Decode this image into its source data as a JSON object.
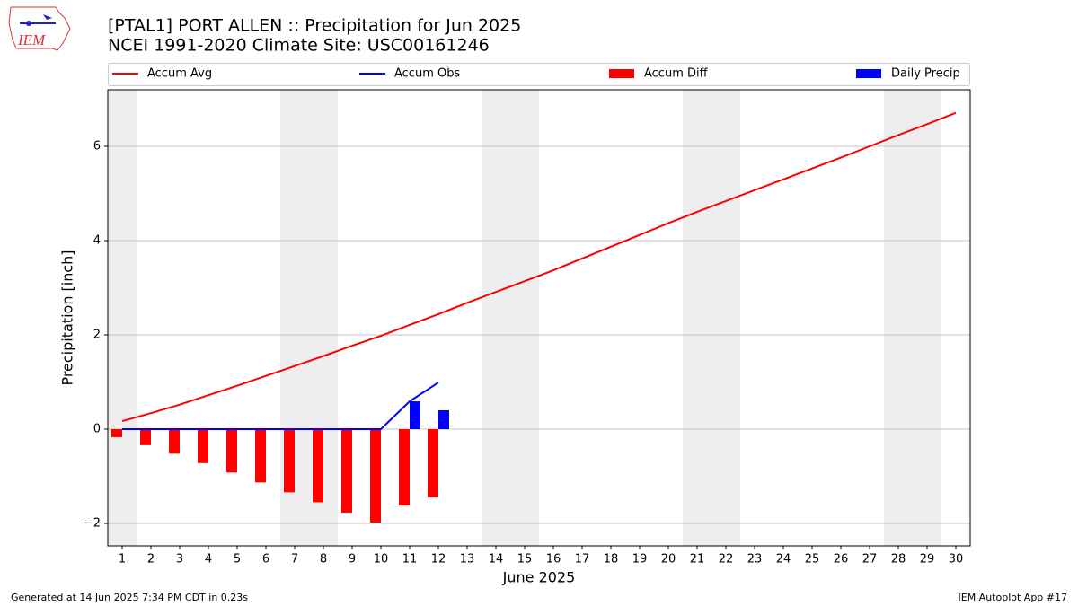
{
  "chart_data": {
    "type": "combo",
    "title": "[PTAL1] PORT ALLEN :: Precipitation for Jun 2025",
    "subtitle": "NCEI 1991-2020 Climate Site: USC00161246",
    "logo": "IEM",
    "x_label": "June 2025",
    "y_label": "Precipitation [inch]",
    "footer_left": "Generated at 14 Jun 2025 7:34 PM CDT in 0.23s",
    "footer_right": "IEM Autoplot App #17",
    "x": [
      1,
      2,
      3,
      4,
      5,
      6,
      7,
      8,
      9,
      10,
      11,
      12,
      13,
      14,
      15,
      16,
      17,
      18,
      19,
      20,
      21,
      22,
      23,
      24,
      25,
      26,
      27,
      28,
      29,
      30
    ],
    "xlim": [
      0.5,
      30.5
    ],
    "xticks": [
      1,
      2,
      3,
      4,
      5,
      6,
      7,
      8,
      9,
      10,
      11,
      12,
      13,
      14,
      15,
      16,
      17,
      18,
      19,
      20,
      21,
      22,
      23,
      24,
      25,
      26,
      27,
      28,
      29,
      30
    ],
    "ylim": [
      -2.476,
      7.2
    ],
    "yticks": [
      {
        "value": -2,
        "label": "−2"
      },
      0,
      2,
      4,
      6
    ],
    "grid": true,
    "shaded_days": [
      1,
      7,
      8,
      14,
      15,
      21,
      22,
      28,
      29
    ],
    "shade_color": "#eeeeee",
    "series": [
      {
        "name": "Accum Avg",
        "type": "line",
        "color": "#ff0000",
        "values": [
          0.17,
          0.34,
          0.52,
          0.72,
          0.92,
          1.13,
          1.34,
          1.55,
          1.77,
          1.98,
          2.21,
          2.44,
          2.68,
          2.91,
          3.14,
          3.37,
          3.62,
          3.87,
          4.12,
          4.37,
          4.61,
          4.84,
          5.07,
          5.3,
          5.53,
          5.76,
          6.0,
          6.24,
          6.47,
          6.71
        ]
      },
      {
        "name": "Accum Obs",
        "type": "line",
        "color": "#0000ff",
        "values": [
          0,
          0,
          0,
          0,
          0,
          0,
          0,
          0,
          0,
          0,
          0.59,
          0.99,
          null,
          null,
          null,
          null,
          null,
          null,
          null,
          null,
          null,
          null,
          null,
          null,
          null,
          null,
          null,
          null,
          null,
          null
        ]
      },
      {
        "name": "Accum Diff",
        "type": "bar",
        "side": "left",
        "color": "#ff0000",
        "values": [
          -0.17,
          -0.34,
          -0.52,
          -0.72,
          -0.92,
          -1.13,
          -1.34,
          -1.55,
          -1.77,
          -1.98,
          -1.62,
          -1.45,
          null,
          null,
          null,
          null,
          null,
          null,
          null,
          null,
          null,
          null,
          null,
          null,
          null,
          null,
          null,
          null,
          null,
          null
        ]
      },
      {
        "name": "Daily Precip",
        "type": "bar",
        "side": "right",
        "color": "#0000ff",
        "values": [
          0,
          0,
          0,
          0,
          0,
          0,
          0,
          0,
          0,
          0,
          0.59,
          0.4,
          null,
          null,
          null,
          null,
          null,
          null,
          null,
          null,
          null,
          null,
          null,
          null,
          null,
          null,
          null,
          null,
          null,
          null
        ]
      }
    ]
  }
}
